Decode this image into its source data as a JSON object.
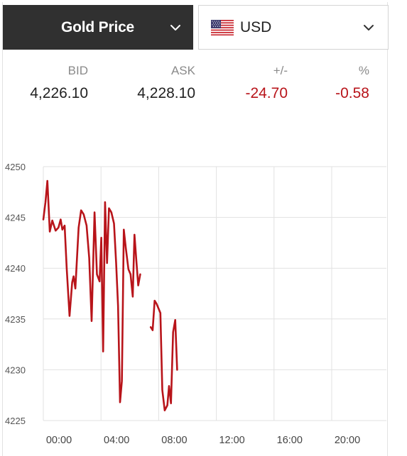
{
  "header": {
    "metal_label": "Gold Price",
    "currency_label": "USD",
    "chevron_icon": "chevron-down-icon",
    "flag_icon": "us-flag-icon"
  },
  "quote": {
    "bid_label": "BID",
    "ask_label": "ASK",
    "change_label": "+/-",
    "percent_label": "%",
    "bid": "4,226.10",
    "ask": "4,228.10",
    "change": "-24.70",
    "percent": "-0.58"
  },
  "colors": {
    "line": "#b8141a",
    "negative": "#b8141a",
    "grid": "#e1e1e1",
    "dark_bar": "#303030"
  },
  "chart_data": {
    "type": "line",
    "title": "",
    "xlabel": "",
    "ylabel": "",
    "ylim": [
      4225,
      4250
    ],
    "xlim": [
      0,
      24
    ],
    "y_ticks": [
      4250,
      4245,
      4240,
      4235,
      4230,
      4225
    ],
    "x_ticks": [
      0,
      4,
      8,
      12,
      16,
      20
    ],
    "x_tick_labels": [
      "00:00",
      "04:00",
      "08:00",
      "12:00",
      "16:00",
      "20:00"
    ],
    "grid": true,
    "series": [
      {
        "values": [
          [
            0.0,
            4244.8
          ],
          [
            0.15,
            4246.5
          ],
          [
            0.28,
            4248.6
          ],
          [
            0.45,
            4243.6
          ],
          [
            0.62,
            4244.7
          ],
          [
            0.85,
            4243.7
          ],
          [
            1.05,
            4244.0
          ],
          [
            1.2,
            4244.8
          ],
          [
            1.32,
            4243.8
          ],
          [
            1.48,
            4244.2
          ],
          [
            1.62,
            4240.0
          ],
          [
            1.82,
            4235.3
          ],
          [
            2.0,
            4238.6
          ],
          [
            2.1,
            4239.2
          ],
          [
            2.22,
            4238.0
          ],
          [
            2.45,
            4244.0
          ],
          [
            2.62,
            4245.7
          ],
          [
            2.8,
            4245.3
          ],
          [
            3.0,
            4244.2
          ],
          [
            3.18,
            4241.0
          ],
          [
            3.35,
            4234.8
          ],
          [
            3.55,
            4245.5
          ],
          [
            3.72,
            4239.4
          ],
          [
            3.9,
            4238.7
          ],
          [
            4.02,
            4243.0
          ],
          [
            4.15,
            4231.8
          ],
          [
            4.28,
            4246.5
          ],
          [
            4.42,
            4240.5
          ],
          [
            4.55,
            4245.9
          ],
          [
            4.72,
            4245.5
          ],
          [
            4.9,
            4244.4
          ],
          [
            5.05,
            4240.5
          ],
          [
            5.18,
            4236.3
          ],
          [
            5.32,
            4226.8
          ],
          [
            5.45,
            4228.9
          ],
          [
            5.58,
            4243.8
          ],
          [
            5.72,
            4242.0
          ],
          [
            5.9,
            4239.9
          ],
          [
            6.05,
            4239.4
          ],
          [
            6.2,
            4237.2
          ],
          [
            6.32,
            4243.3
          ],
          [
            6.45,
            4240.8
          ],
          [
            6.58,
            4238.3
          ],
          [
            6.72,
            4239.4
          ],
          null,
          [
            7.45,
            4234.2
          ],
          [
            7.58,
            4233.9
          ],
          [
            7.72,
            4236.8
          ],
          [
            7.85,
            4236.5
          ],
          [
            8.0,
            4236.0
          ],
          [
            8.12,
            4235.6
          ],
          [
            8.25,
            4228.0
          ],
          [
            8.42,
            4226.0
          ],
          [
            8.6,
            4226.5
          ],
          [
            8.72,
            4228.4
          ],
          [
            8.85,
            4226.7
          ],
          [
            9.0,
            4233.7
          ],
          [
            9.15,
            4234.9
          ],
          [
            9.28,
            4230.0
          ]
        ]
      }
    ]
  }
}
